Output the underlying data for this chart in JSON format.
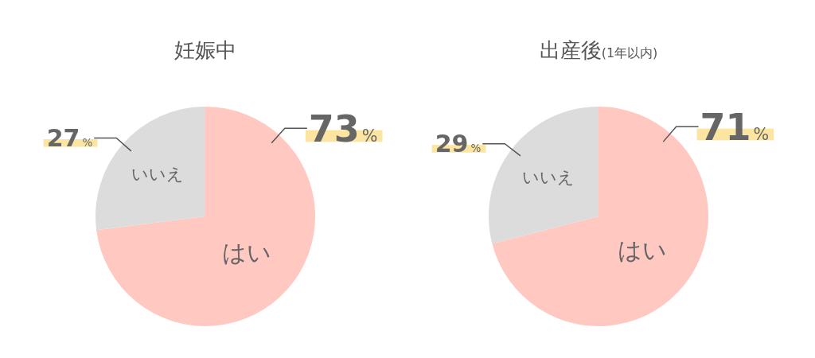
{
  "chart_data": [
    {
      "type": "pie",
      "title": "妊娠中",
      "categories": [
        "はい",
        "いいえ"
      ],
      "values": [
        73,
        27
      ],
      "colors": [
        "#ffc9c2",
        "#dcdcdc"
      ],
      "value_labels": [
        "73%",
        "27%"
      ]
    },
    {
      "type": "pie",
      "title": "出産後(1年以内)",
      "categories": [
        "はい",
        "いいえ"
      ],
      "values": [
        71,
        29
      ],
      "colors": [
        "#ffc9c2",
        "#dcdcdc"
      ],
      "value_labels": [
        "71%",
        "29%"
      ]
    }
  ]
}
